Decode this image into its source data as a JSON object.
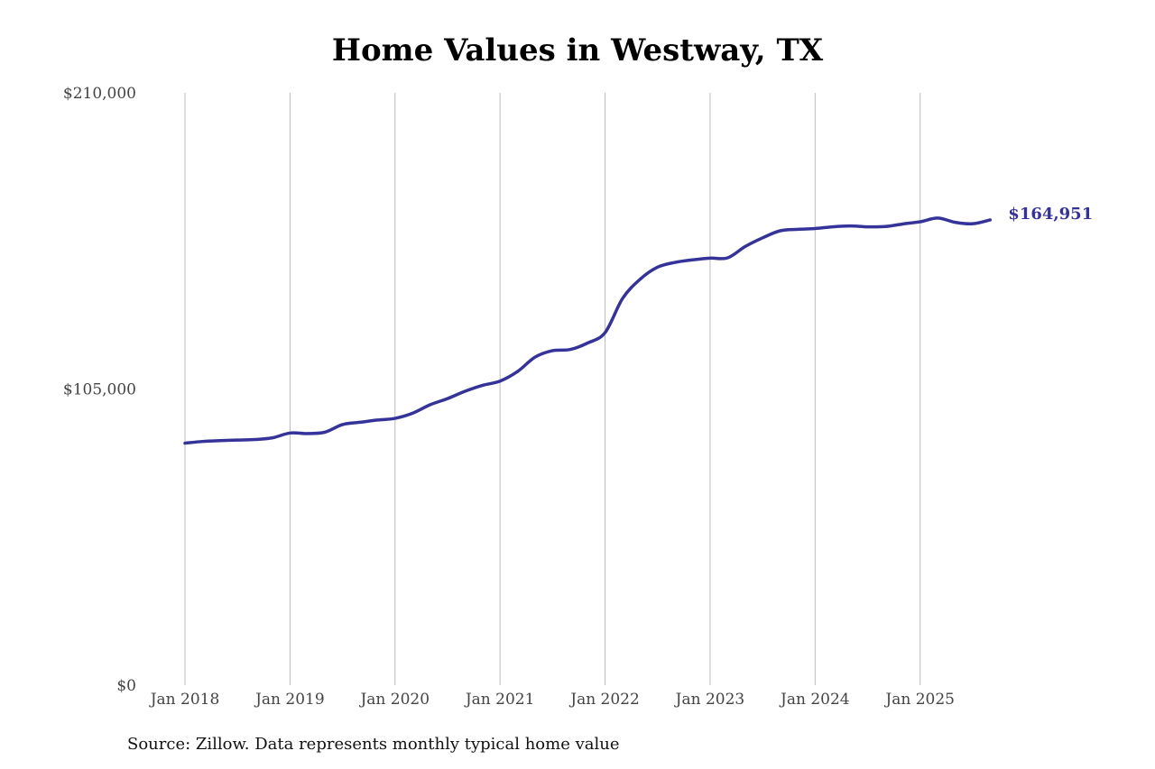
{
  "chart_data": {
    "type": "line",
    "title": "Home Values in Westway, TX",
    "xlabel": "",
    "ylabel": "",
    "ylim": [
      0,
      210000
    ],
    "y_ticks": [
      "$210,000",
      "$105,000",
      "$0"
    ],
    "y_tick_values": [
      210000,
      105000,
      0
    ],
    "x_ticks": [
      "Jan 2018",
      "Jan 2019",
      "Jan 2020",
      "Jan 2021",
      "Jan 2022",
      "Jan 2023",
      "Jan 2024",
      "Jan 2025"
    ],
    "x_tick_values": [
      2018,
      2019,
      2020,
      2021,
      2022,
      2023,
      2024,
      2025
    ],
    "xlim": [
      2018,
      2025.75
    ],
    "grid": "vertical",
    "line_color": "#35339A",
    "end_label": "$164,951",
    "series": [
      {
        "x": [
          2018.0,
          2018.1667,
          2018.3333,
          2018.5,
          2018.6667,
          2018.8333,
          2019.0,
          2019.1667,
          2019.3333,
          2019.5,
          2019.6667,
          2019.8333,
          2020.0,
          2020.1667,
          2020.3333,
          2020.5,
          2020.6667,
          2020.8333,
          2021.0,
          2021.1667,
          2021.3333,
          2021.5,
          2021.6667,
          2021.8333,
          2022.0,
          2022.1667,
          2022.3333,
          2022.5,
          2022.6667,
          2022.8333,
          2023.0,
          2023.1667,
          2023.3333,
          2023.5,
          2023.6667,
          2023.8333,
          2024.0,
          2024.1667,
          2024.3333,
          2024.5,
          2024.6667,
          2024.8333,
          2025.0,
          2025.1667,
          2025.3333,
          2025.5,
          2025.6667
        ],
        "y": [
          85800,
          86400,
          86700,
          86900,
          87100,
          87700,
          89400,
          89200,
          89700,
          92400,
          93200,
          94000,
          94600,
          96400,
          99400,
          101600,
          104200,
          106300,
          107800,
          111200,
          116300,
          118600,
          119000,
          121300,
          125000,
          137100,
          143900,
          148200,
          149900,
          150800,
          151400,
          151500,
          155500,
          158600,
          161100,
          161600,
          161900,
          162500,
          162800,
          162500,
          162600,
          163500,
          164300,
          165600,
          164100,
          163600,
          164951
        ]
      }
    ]
  },
  "footer": {
    "source": "Source: Zillow. Data represents monthly typical home value"
  }
}
